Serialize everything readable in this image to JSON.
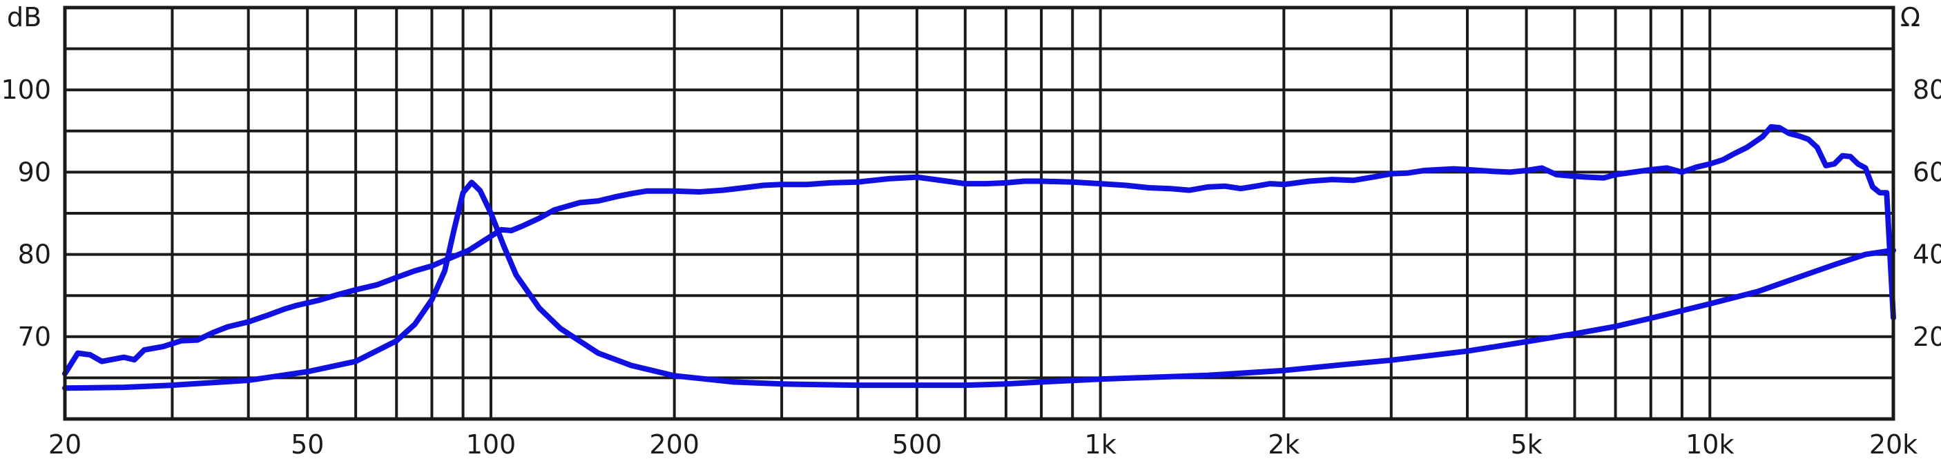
{
  "chart_data": {
    "type": "line",
    "x_scale": "log",
    "xlim": [
      20,
      20000
    ],
    "ylim_left": [
      60,
      110
    ],
    "ylim_right": [
      0,
      100
    ],
    "left_unit": "dB",
    "right_unit": "Ω",
    "x_ticks": [
      {
        "value": 20,
        "label": "20"
      },
      {
        "value": 50,
        "label": "50"
      },
      {
        "value": 100,
        "label": "100"
      },
      {
        "value": 200,
        "label": "200"
      },
      {
        "value": 500,
        "label": "500"
      },
      {
        "value": 1000,
        "label": "1k"
      },
      {
        "value": 2000,
        "label": "2k"
      },
      {
        "value": 5000,
        "label": "5k"
      },
      {
        "value": 10000,
        "label": "10k"
      },
      {
        "value": 20000,
        "label": "20k"
      }
    ],
    "x_grid": [
      20,
      30,
      40,
      50,
      60,
      70,
      80,
      90,
      100,
      200,
      300,
      400,
      500,
      600,
      700,
      800,
      900,
      1000,
      2000,
      3000,
      4000,
      5000,
      6000,
      7000,
      8000,
      9000,
      10000,
      20000
    ],
    "y_left_ticks": [
      {
        "value": 70,
        "label": "70"
      },
      {
        "value": 80,
        "label": "80"
      },
      {
        "value": 90,
        "label": "90"
      },
      {
        "value": 100,
        "label": "100"
      }
    ],
    "y_right_ticks": [
      {
        "value": 20,
        "label": "20"
      },
      {
        "value": 40,
        "label": "40"
      },
      {
        "value": 60,
        "label": "60"
      },
      {
        "value": 80,
        "label": "80"
      }
    ],
    "y_grid_left": [
      65,
      70,
      75,
      80,
      85,
      90,
      95,
      100,
      105,
      110
    ],
    "grid": true,
    "colors": {
      "curve": "#1010e0",
      "grid": "#1a1a1a",
      "text": "#1a1a1a"
    },
    "series": [
      {
        "axis": "left",
        "points": [
          [
            20,
            65.5
          ],
          [
            21,
            68
          ],
          [
            22,
            67.8
          ],
          [
            23,
            67.0
          ],
          [
            25,
            67.5
          ],
          [
            26,
            67.2
          ],
          [
            27,
            68.4
          ],
          [
            29,
            68.8
          ],
          [
            31,
            69.5
          ],
          [
            33,
            69.6
          ],
          [
            35,
            70.5
          ],
          [
            37,
            71.2
          ],
          [
            40,
            71.8
          ],
          [
            43,
            72.6
          ],
          [
            46,
            73.4
          ],
          [
            48,
            73.8
          ],
          [
            52,
            74.4
          ],
          [
            56,
            75.1
          ],
          [
            60,
            75.7
          ],
          [
            65,
            76.3
          ],
          [
            70,
            77.2
          ],
          [
            75,
            78.0
          ],
          [
            80,
            78.6
          ],
          [
            86,
            79.6
          ],
          [
            92,
            80.5
          ],
          [
            98,
            81.8
          ],
          [
            104,
            83.0
          ],
          [
            108,
            82.9
          ],
          [
            113,
            83.5
          ],
          [
            120,
            84.4
          ],
          [
            127,
            85.4
          ],
          [
            134,
            85.9
          ],
          [
            140,
            86.3
          ],
          [
            150,
            86.5
          ],
          [
            160,
            87.0
          ],
          [
            170,
            87.4
          ],
          [
            180,
            87.7
          ],
          [
            200,
            87.7
          ],
          [
            220,
            87.6
          ],
          [
            240,
            87.8
          ],
          [
            260,
            88.1
          ],
          [
            280,
            88.4
          ],
          [
            300,
            88.5
          ],
          [
            330,
            88.5
          ],
          [
            360,
            88.7
          ],
          [
            400,
            88.8
          ],
          [
            450,
            89.2
          ],
          [
            500,
            89.4
          ],
          [
            560,
            88.9
          ],
          [
            600,
            88.6
          ],
          [
            650,
            88.6
          ],
          [
            700,
            88.7
          ],
          [
            750,
            88.9
          ],
          [
            800,
            88.9
          ],
          [
            900,
            88.8
          ],
          [
            1000,
            88.6
          ],
          [
            1100,
            88.4
          ],
          [
            1200,
            88.1
          ],
          [
            1300,
            88.0
          ],
          [
            1400,
            87.8
          ],
          [
            1500,
            88.2
          ],
          [
            1600,
            88.3
          ],
          [
            1700,
            88.0
          ],
          [
            1800,
            88.3
          ],
          [
            1900,
            88.6
          ],
          [
            2000,
            88.5
          ],
          [
            2200,
            88.9
          ],
          [
            2400,
            89.1
          ],
          [
            2600,
            89.0
          ],
          [
            2800,
            89.4
          ],
          [
            3000,
            89.8
          ],
          [
            3200,
            89.9
          ],
          [
            3400,
            90.2
          ],
          [
            3600,
            90.3
          ],
          [
            3800,
            90.4
          ],
          [
            4000,
            90.3
          ],
          [
            4200,
            90.2
          ],
          [
            4400,
            90.1
          ],
          [
            4700,
            90.0
          ],
          [
            5000,
            90.2
          ],
          [
            5300,
            90.5
          ],
          [
            5600,
            89.7
          ],
          [
            6000,
            89.5
          ],
          [
            6300,
            89.4
          ],
          [
            6700,
            89.3
          ],
          [
            7000,
            89.7
          ],
          [
            7500,
            90.0
          ],
          [
            8000,
            90.3
          ],
          [
            8500,
            90.5
          ],
          [
            9000,
            90.0
          ],
          [
            9500,
            90.6
          ],
          [
            10000,
            91.0
          ],
          [
            10500,
            91.5
          ],
          [
            11000,
            92.3
          ],
          [
            11500,
            93.0
          ],
          [
            12200,
            94.3
          ],
          [
            12600,
            95.5
          ],
          [
            13000,
            95.4
          ],
          [
            13500,
            94.7
          ],
          [
            14000,
            94.4
          ],
          [
            14500,
            94.0
          ],
          [
            15000,
            93.0
          ],
          [
            15500,
            90.8
          ],
          [
            16000,
            91.0
          ],
          [
            16500,
            92.0
          ],
          [
            17000,
            91.9
          ],
          [
            17500,
            91.0
          ],
          [
            18000,
            90.5
          ],
          [
            18500,
            88.2
          ],
          [
            19000,
            87.5
          ],
          [
            19500,
            87.5
          ],
          [
            20000,
            72.3
          ]
        ]
      },
      {
        "axis": "right",
        "points": [
          [
            20,
            7.5
          ],
          [
            25,
            7.7
          ],
          [
            30,
            8.2
          ],
          [
            40,
            9.4
          ],
          [
            50,
            11.5
          ],
          [
            60,
            14
          ],
          [
            70,
            19
          ],
          [
            75,
            23
          ],
          [
            80,
            29
          ],
          [
            84,
            36
          ],
          [
            87,
            46
          ],
          [
            90,
            55
          ],
          [
            93,
            57.5
          ],
          [
            96,
            55.5
          ],
          [
            100,
            50
          ],
          [
            105,
            42
          ],
          [
            110,
            35
          ],
          [
            120,
            27
          ],
          [
            130,
            22
          ],
          [
            150,
            16
          ],
          [
            170,
            13
          ],
          [
            200,
            10.5
          ],
          [
            250,
            9
          ],
          [
            300,
            8.5
          ],
          [
            400,
            8.2
          ],
          [
            500,
            8.2
          ],
          [
            600,
            8.2
          ],
          [
            700,
            8.5
          ],
          [
            800,
            9
          ],
          [
            1000,
            9.7
          ],
          [
            1500,
            10.6
          ],
          [
            2000,
            11.8
          ],
          [
            2500,
            13.2
          ],
          [
            3000,
            14.3
          ],
          [
            4000,
            16.5
          ],
          [
            5000,
            18.8
          ],
          [
            6000,
            20.7
          ],
          [
            7000,
            22.5
          ],
          [
            8000,
            24.5
          ],
          [
            10000,
            28
          ],
          [
            12000,
            31
          ],
          [
            14000,
            34.5
          ],
          [
            16000,
            37.5
          ],
          [
            18000,
            40
          ],
          [
            20000,
            41
          ]
        ]
      }
    ]
  }
}
